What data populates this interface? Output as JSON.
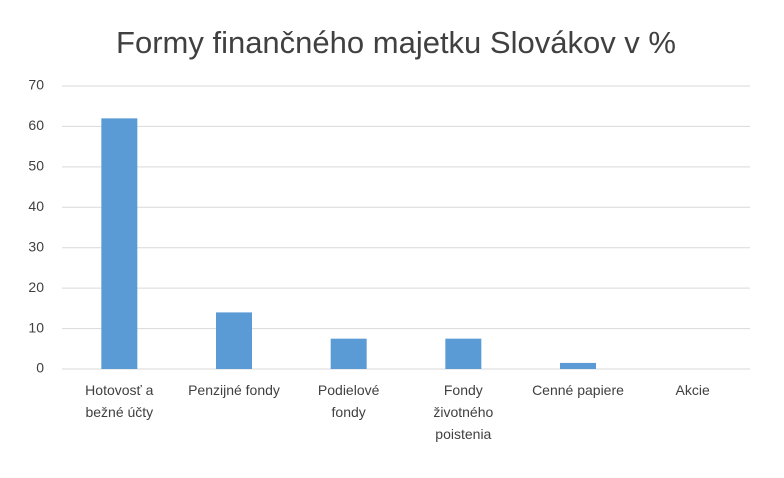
{
  "chart_data": {
    "type": "bar",
    "title": "Formy finančného majetku Slovákov v %",
    "categories": [
      "Hotovosť a bežné účty",
      "Penzijné fondy",
      "Podielové fondy",
      "Fondy životného poistenia",
      "Cenné papiere",
      "Akcie"
    ],
    "values": [
      62,
      14,
      7.5,
      7.5,
      1.5,
      0
    ],
    "color": "#5b9bd5",
    "ylim": [
      0,
      70
    ],
    "yticks": [
      0,
      10,
      20,
      30,
      40,
      50,
      60,
      70
    ],
    "grid": true
  }
}
